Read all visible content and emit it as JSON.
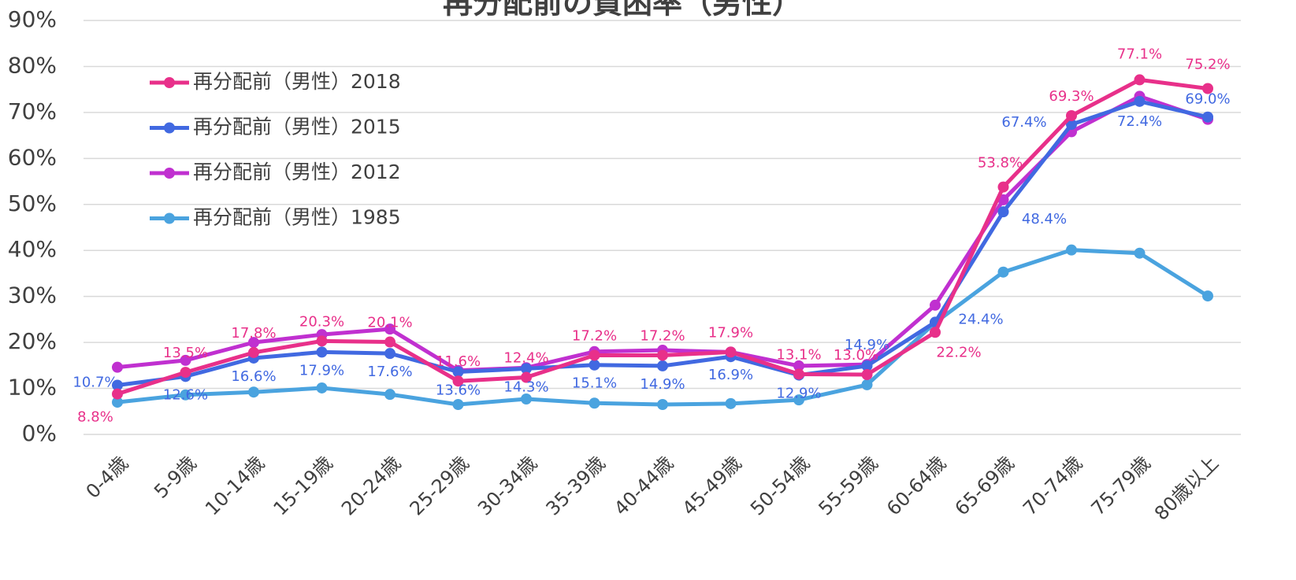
{
  "chart_data": {
    "type": "line",
    "title": "再分配前の貧困率（男性）",
    "categories": [
      "0-4歳",
      "5-9歳",
      "10-14歳",
      "15-19歳",
      "20-24歳",
      "25-29歳",
      "30-34歳",
      "35-39歳",
      "40-44歳",
      "45-49歳",
      "50-54歳",
      "55-59歳",
      "60-64歳",
      "65-69歳",
      "70-74歳",
      "75-79歳",
      "80歳以上"
    ],
    "series": [
      {
        "name": "再分配前（男性）2018",
        "color": "#e8308a",
        "values": [
          8.8,
          13.5,
          17.8,
          20.3,
          20.1,
          11.6,
          12.4,
          17.2,
          17.2,
          17.9,
          13.1,
          13.0,
          22.2,
          53.8,
          69.3,
          77.1,
          75.2
        ],
        "value_labels": [
          "8.8%",
          "13.5%",
          "17.8%",
          "20.3%",
          "20.1%",
          "11.6%",
          "12.4%",
          "17.2%",
          "17.2%",
          "17.9%",
          "13.1%",
          "13.0%",
          "22.2%",
          "53.8%",
          "69.3%",
          "77.1%",
          "75.2%"
        ]
      },
      {
        "name": "再分配前（男性）2015",
        "color": "#4169e1",
        "values": [
          10.7,
          12.6,
          16.6,
          17.9,
          17.6,
          13.6,
          14.3,
          15.1,
          14.9,
          16.9,
          12.9,
          14.9,
          24.4,
          48.4,
          67.4,
          72.4,
          69.0
        ],
        "value_labels": [
          "10.7%",
          "12.6%",
          "16.6%",
          "17.9%",
          "17.6%",
          "13.6%",
          "14.3%",
          "15.1%",
          "14.9%",
          "16.9%",
          "12.9%",
          "14.9%",
          "24.4%",
          "48.4%",
          "67.4%",
          "72.4%",
          "69.0%"
        ]
      },
      {
        "name": "再分配前（男性）2012",
        "color": "#c030d0",
        "values": [
          14.6,
          16.1,
          20.0,
          21.7,
          22.9,
          13.9,
          14.5,
          18.0,
          18.3,
          17.9,
          14.9,
          15.2,
          28.1,
          51.0,
          65.8,
          73.5,
          68.5
        ]
      },
      {
        "name": "再分配前（男性）1985",
        "color": "#4aa3df",
        "values": [
          7.0,
          8.6,
          9.2,
          10.1,
          8.7,
          6.5,
          7.7,
          6.8,
          6.5,
          6.7,
          7.5,
          10.8,
          24.3,
          35.3,
          40.1,
          39.4,
          30.1
        ]
      }
    ],
    "ylim": [
      0,
      90
    ],
    "yticks": [
      {
        "value": 0,
        "label": "0%"
      },
      {
        "value": 10,
        "label": "10%"
      },
      {
        "value": 20,
        "label": "20%"
      },
      {
        "value": 30,
        "label": "30%"
      },
      {
        "value": 40,
        "label": "40%"
      },
      {
        "value": 50,
        "label": "50%"
      },
      {
        "value": 60,
        "label": "60%"
      },
      {
        "value": 70,
        "label": "70%"
      },
      {
        "value": 80,
        "label": "80%"
      },
      {
        "value": 90,
        "label": "90%"
      }
    ],
    "grid": true,
    "legend": "upper-left"
  }
}
